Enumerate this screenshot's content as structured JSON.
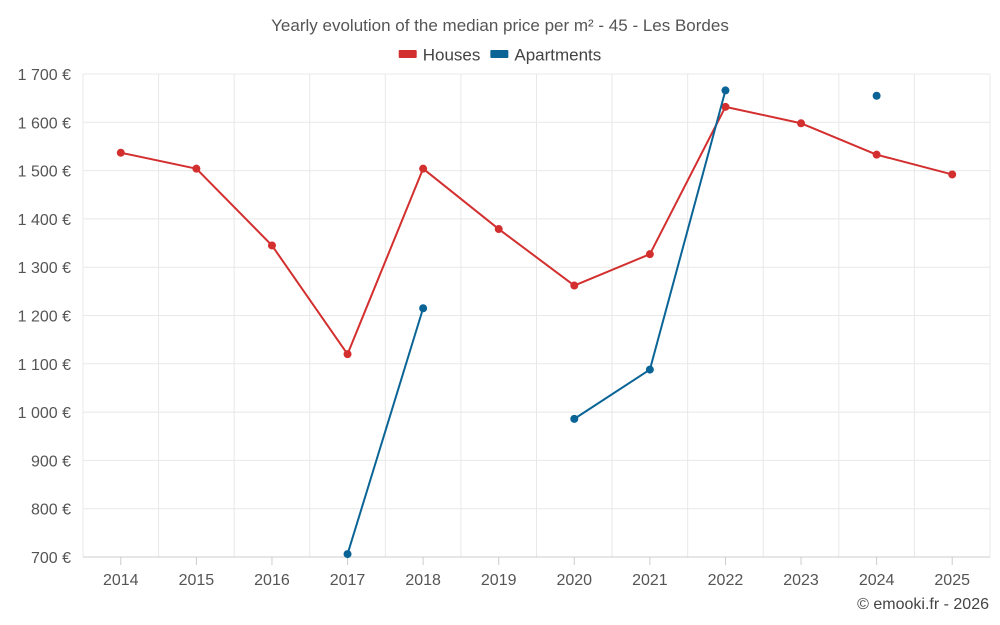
{
  "chart_data": {
    "type": "line",
    "title": "Yearly evolution of the median price per m² - 45 - Les Bordes",
    "categories": [
      "2014",
      "2015",
      "2016",
      "2017",
      "2018",
      "2019",
      "2020",
      "2021",
      "2022",
      "2023",
      "2024",
      "2025"
    ],
    "ylim": [
      700,
      1700
    ],
    "yticks": [
      700,
      800,
      900,
      1000,
      1100,
      1200,
      1300,
      1400,
      1500,
      1600,
      1700
    ],
    "ytick_labels": [
      "700 €",
      "800 €",
      "900 €",
      "1 000 €",
      "1 100 €",
      "1 200 €",
      "1 300 €",
      "1 400 €",
      "1 500 €",
      "1 600 €",
      "1 700 €"
    ],
    "legend_position": "top-center",
    "grid": true,
    "series": [
      {
        "name": "Houses",
        "color": "#d32f2f",
        "values": [
          1537,
          1504,
          1345,
          1120,
          1504,
          1379,
          1262,
          1327,
          1632,
          1598,
          1533,
          1492
        ]
      },
      {
        "name": "Apartments",
        "color": "#0a6496",
        "values": [
          null,
          null,
          null,
          706,
          1215,
          null,
          986,
          1088,
          1666,
          null,
          1655,
          null
        ]
      }
    ]
  },
  "credit": "© emooki.fr - 2026"
}
